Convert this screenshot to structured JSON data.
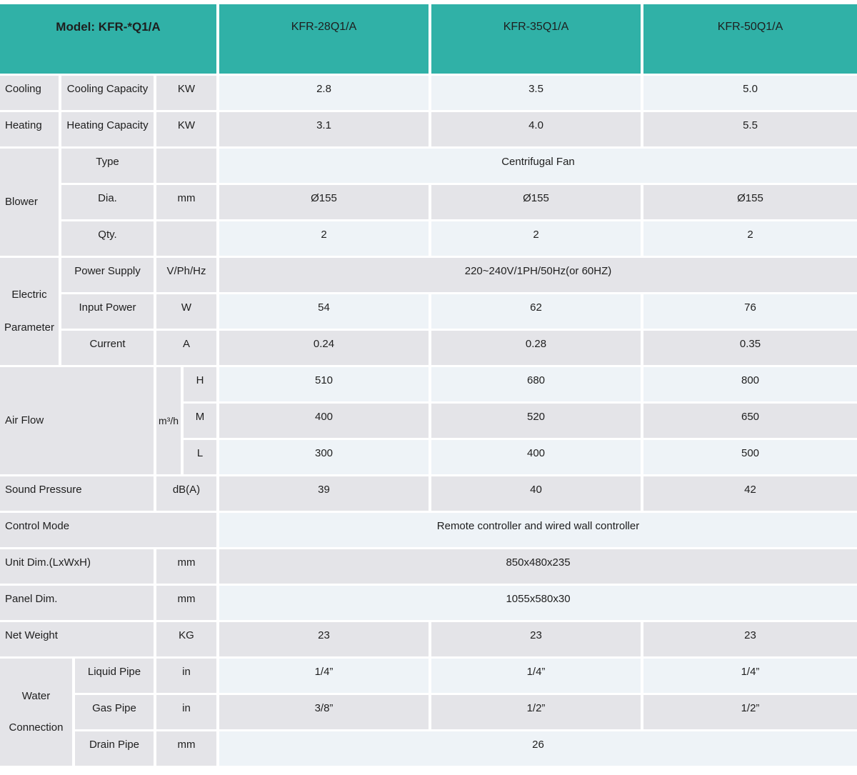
{
  "header": {
    "model_label": "Model: KFR-*Q1/A",
    "columns": [
      "KFR-28Q1/A",
      "KFR-35Q1/A",
      "KFR-50Q1/A"
    ]
  },
  "colors": {
    "header_teal": "#30b1a7",
    "row_light": "#eef3f7",
    "row_gray": "#e4e4e8",
    "gap_white": "#ffffff",
    "text": "#1e1e1e"
  },
  "sections": {
    "cooling": {
      "group": "Cooling",
      "label": "Cooling Capacity",
      "unit": "KW",
      "values": [
        "2.8",
        "3.5",
        "5.0"
      ]
    },
    "heating": {
      "group": "Heating",
      "label": "Heating Capacity",
      "unit": "KW",
      "values": [
        "3.1",
        "4.0",
        "5.5"
      ]
    },
    "blower": {
      "group": "Blower",
      "rows": {
        "type": {
          "label": "Type",
          "unit": "",
          "span": "Centrifugal Fan"
        },
        "dia": {
          "label": "Dia.",
          "unit": "mm",
          "values": [
            "Ø155",
            "Ø155",
            "Ø155"
          ]
        },
        "qty": {
          "label": "Qty.",
          "unit": "",
          "values": [
            "2",
            "2",
            "2"
          ]
        }
      }
    },
    "electric": {
      "group": "Electric Parameter",
      "rows": {
        "power_supply": {
          "label": "Power Supply",
          "unit": "V/Ph/Hz",
          "span": "220~240V/1PH/50Hz(or 60HZ)"
        },
        "input_power": {
          "label": "Input Power",
          "unit": "W",
          "values": [
            "54",
            "62",
            "76"
          ]
        },
        "current": {
          "label": "Current",
          "unit": "A",
          "values": [
            "0.24",
            "0.28",
            "0.35"
          ]
        }
      }
    },
    "airflow": {
      "group": "Air Flow",
      "unit": "m³/h",
      "rows": {
        "high": {
          "label": "H",
          "values": [
            "510",
            "680",
            "800"
          ]
        },
        "medium": {
          "label": "M",
          "values": [
            "400",
            "520",
            "650"
          ]
        },
        "low": {
          "label": "L",
          "values": [
            "300",
            "400",
            "500"
          ]
        }
      }
    },
    "sound": {
      "label": "Sound Pressure",
      "unit": "dB(A)",
      "values": [
        "39",
        "40",
        "42"
      ]
    },
    "control": {
      "label": "Control Mode",
      "span": "Remote controller and wired wall controller"
    },
    "unit_dim": {
      "label": "Unit Dim.(LxWxH)",
      "unit": "mm",
      "span": "850x480x235"
    },
    "panel_dim": {
      "label": "Panel Dim.",
      "unit": "mm",
      "span": "1055x580x30"
    },
    "net_weight": {
      "label": "Net Weight",
      "unit": "KG",
      "values": [
        "23",
        "23",
        "23"
      ]
    },
    "water": {
      "group": "Water Connection",
      "rows": {
        "liquid": {
          "label": "Liquid Pipe",
          "unit": "in",
          "values": [
            "1/4”",
            "1/4”",
            "1/4”"
          ]
        },
        "gas": {
          "label": "Gas Pipe",
          "unit": "in",
          "values": [
            "3/8”",
            "1/2”",
            "1/2”"
          ]
        },
        "drain": {
          "label": "Drain Pipe",
          "unit": "mm",
          "span": "26"
        }
      }
    }
  }
}
